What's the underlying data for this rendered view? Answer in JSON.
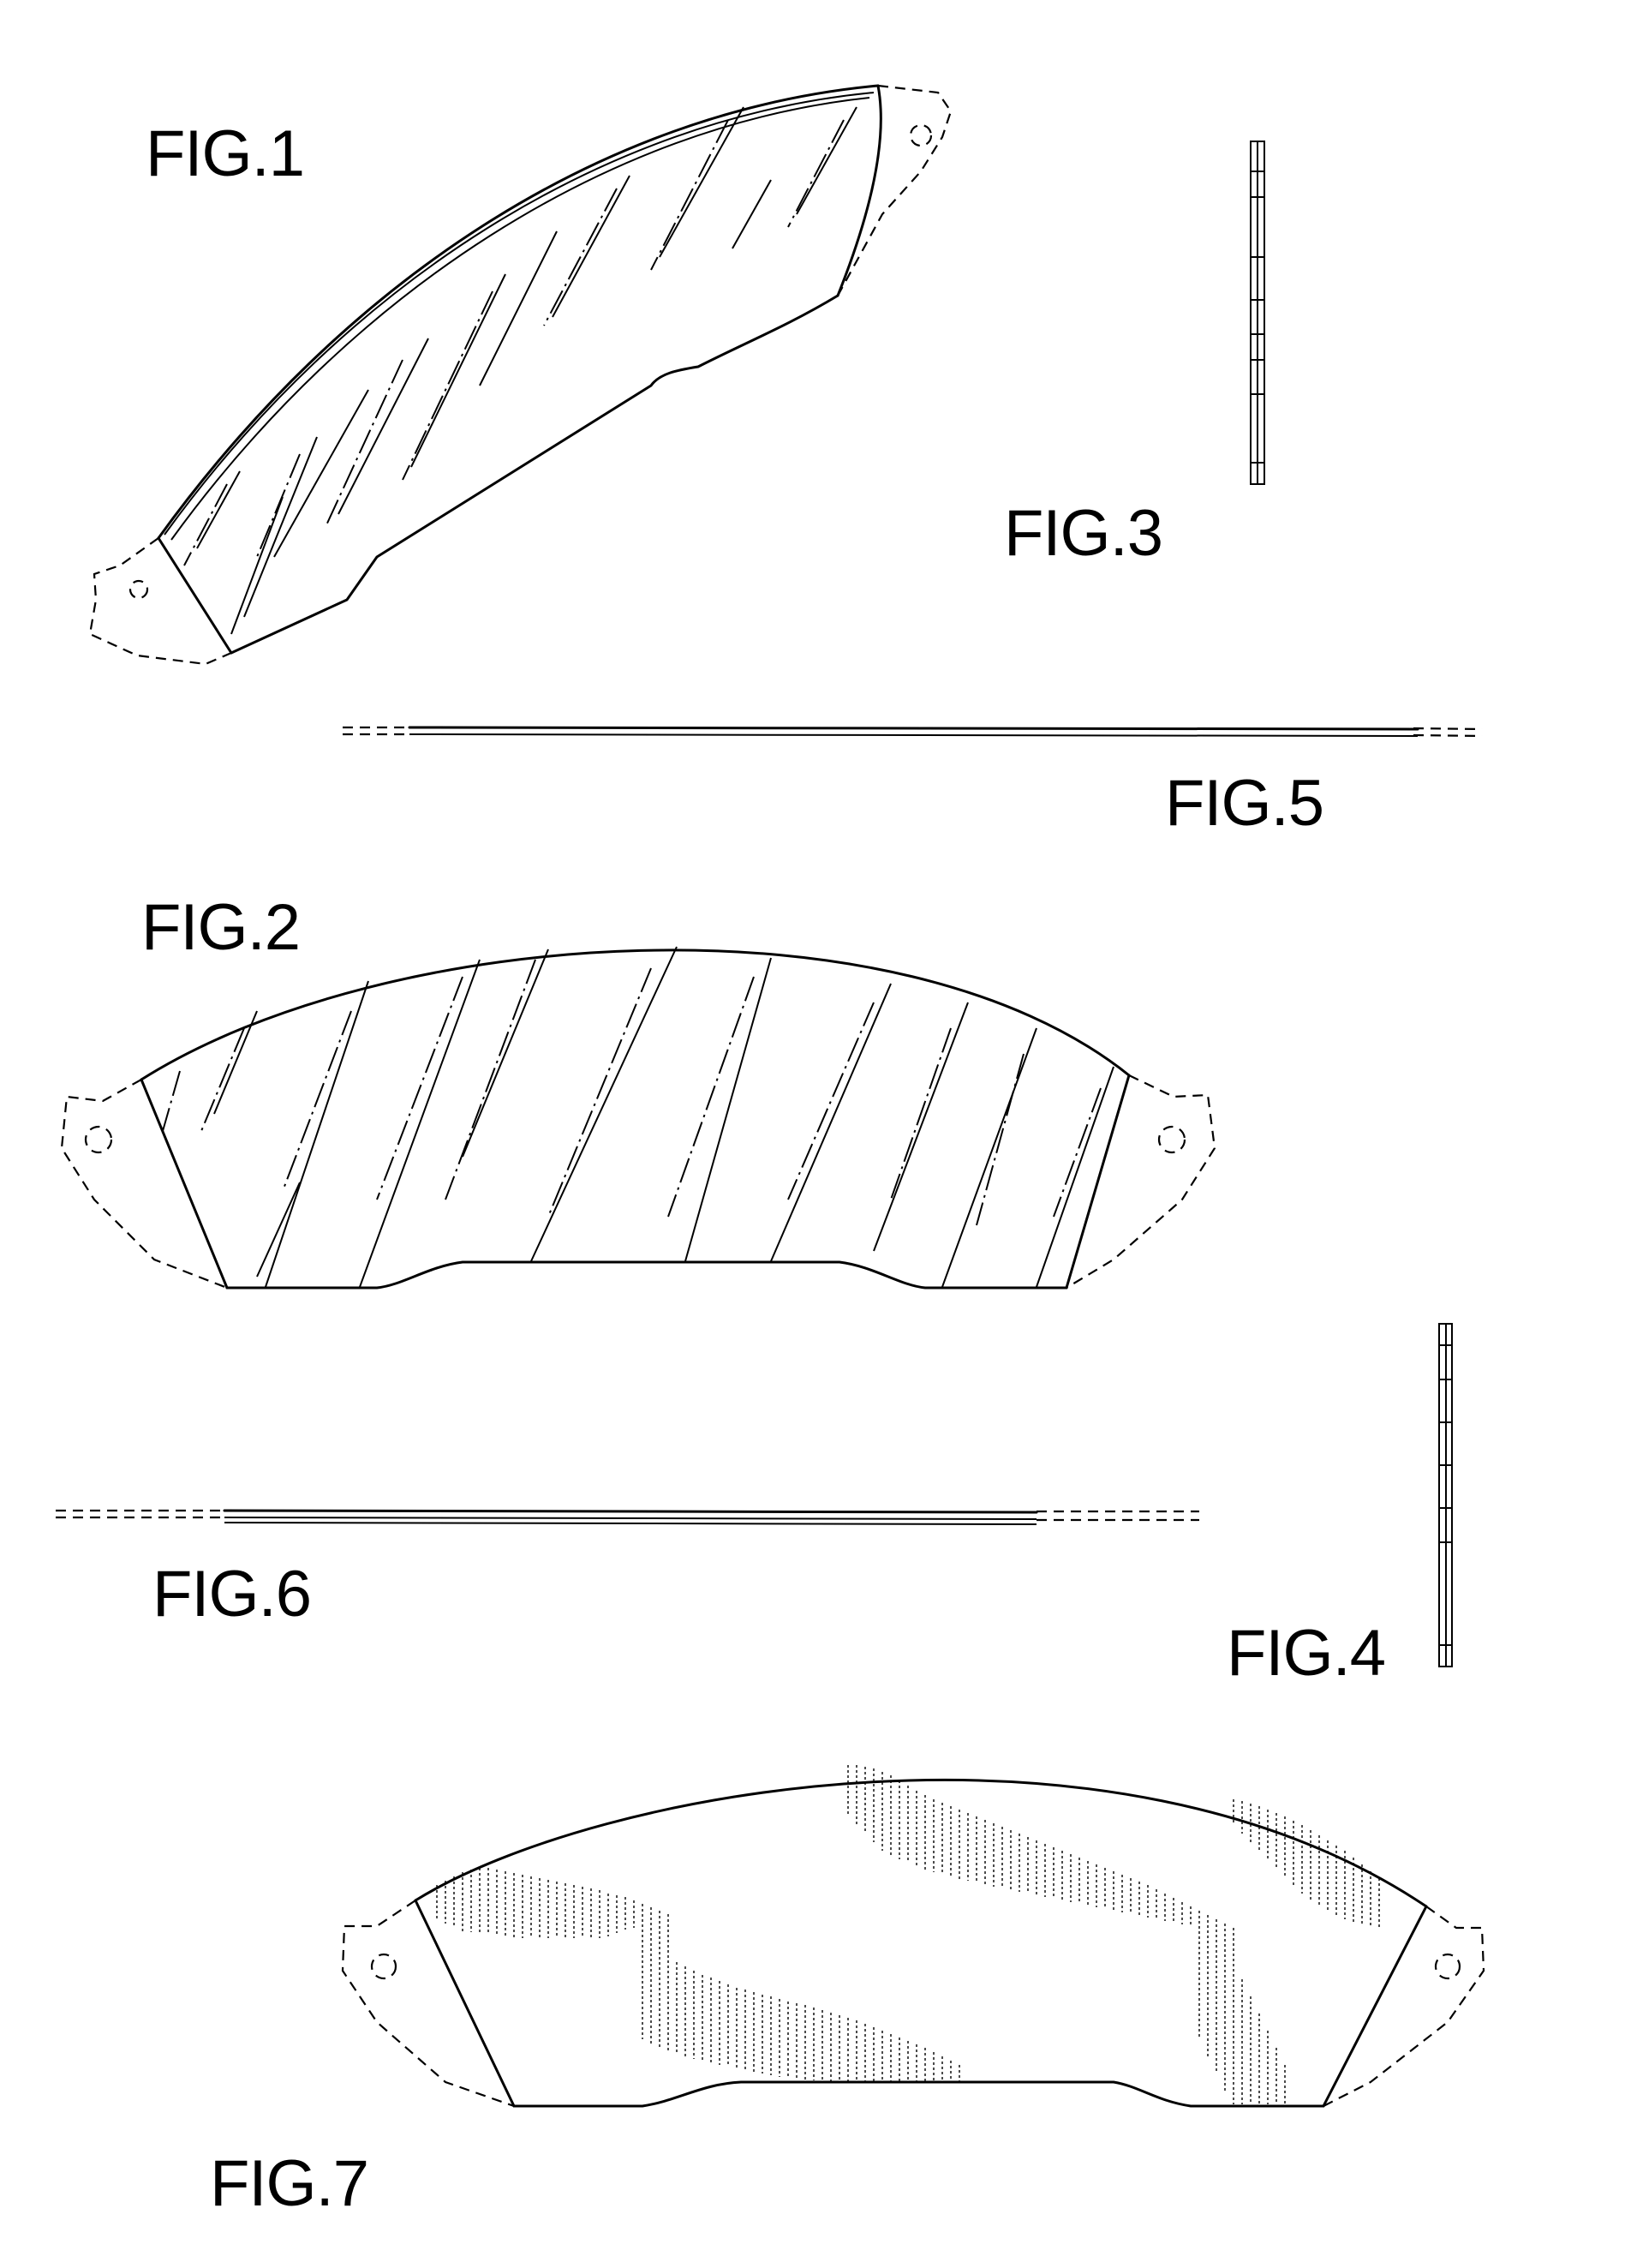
{
  "figures": [
    {
      "id": "fig1",
      "label": "FIG.1"
    },
    {
      "id": "fig2",
      "label": "FIG.2"
    },
    {
      "id": "fig3",
      "label": "FIG.3"
    },
    {
      "id": "fig4",
      "label": "FIG.4"
    },
    {
      "id": "fig5",
      "label": "FIG.5"
    },
    {
      "id": "fig6",
      "label": "FIG.6"
    },
    {
      "id": "fig7",
      "label": "FIG.7"
    }
  ],
  "colors": {
    "ink": "#000000",
    "paper": "#ffffff"
  }
}
